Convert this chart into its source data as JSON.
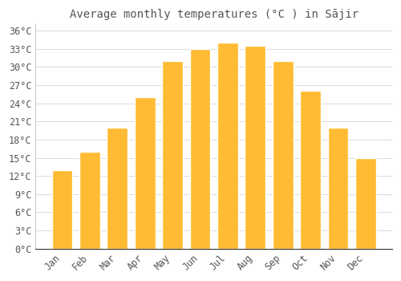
{
  "title": "Average monthly temperatures (°C ) in Sājir",
  "months": [
    "Jan",
    "Feb",
    "Mar",
    "Apr",
    "May",
    "Jun",
    "Jul",
    "Aug",
    "Sep",
    "Oct",
    "Nov",
    "Dec"
  ],
  "values": [
    13,
    16,
    20,
    25,
    31,
    33,
    34,
    33.5,
    31,
    26,
    20,
    15
  ],
  "bar_color": "#FFBB33",
  "bar_edge_color": "#FFFFFF",
  "background_color": "#FFFFFF",
  "grid_color": "#CCCCCC",
  "text_color": "#555555",
  "ylim": [
    0,
    37
  ],
  "yticks": [
    0,
    3,
    6,
    9,
    12,
    15,
    18,
    21,
    24,
    27,
    30,
    33,
    36
  ],
  "ylabel_suffix": "°C",
  "title_fontsize": 10,
  "tick_fontsize": 8.5
}
